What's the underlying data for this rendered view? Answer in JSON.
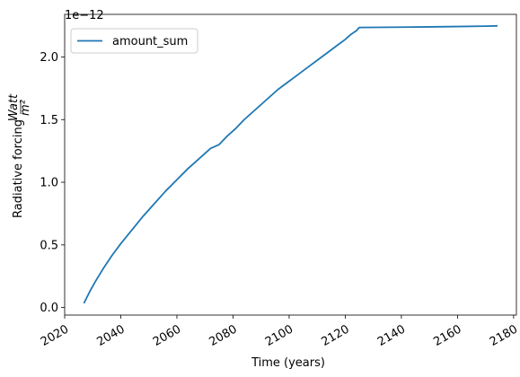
{
  "chart_data": {
    "type": "line",
    "xlabel": "Time (years)",
    "ylabel": "Radiative forcing",
    "ylabel_fraction": {
      "numerator": "Watt",
      "denominator": "m²"
    },
    "offset_text": "1e−12",
    "xlim": [
      2020,
      2181
    ],
    "ylim": [
      -0.06,
      2.34
    ],
    "x_ticks": [
      2020,
      2040,
      2060,
      2080,
      2100,
      2120,
      2140,
      2160,
      2180
    ],
    "x_tick_labels": [
      "2020",
      "2040",
      "2060",
      "2080",
      "2100",
      "2120",
      "2140",
      "2160",
      "2180"
    ],
    "y_ticks": [
      0.0,
      0.5,
      1.0,
      1.5,
      2.0
    ],
    "y_tick_labels": [
      "0.0",
      "0.5",
      "1.0",
      "1.5",
      "2.0"
    ],
    "grid": false,
    "legend_position": "upper-left",
    "series": [
      {
        "name": "amount_sum",
        "color": "#1f77b4",
        "x": [
          2027,
          2029,
          2031,
          2034,
          2037,
          2040,
          2044,
          2048,
          2052,
          2056,
          2060,
          2064,
          2068,
          2072,
          2075,
          2078,
          2081,
          2084,
          2087,
          2090,
          2093,
          2096,
          2099,
          2102,
          2105,
          2108,
          2111,
          2114,
          2117,
          2120,
          2122,
          2124,
          2125,
          2130,
          2140,
          2150,
          2160,
          2170,
          2174
        ],
        "y": [
          0.04,
          0.13,
          0.21,
          0.32,
          0.42,
          0.51,
          0.62,
          0.73,
          0.83,
          0.93,
          1.02,
          1.11,
          1.19,
          1.27,
          1.3,
          1.37,
          1.43,
          1.5,
          1.56,
          1.62,
          1.68,
          1.74,
          1.79,
          1.84,
          1.89,
          1.94,
          1.99,
          2.04,
          2.09,
          2.14,
          2.18,
          2.21,
          2.235,
          2.236,
          2.238,
          2.24,
          2.243,
          2.246,
          2.248
        ]
      }
    ]
  }
}
